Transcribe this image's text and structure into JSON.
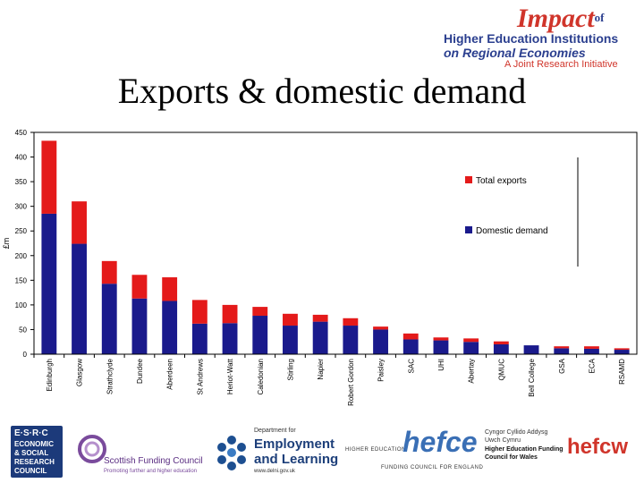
{
  "banner": {
    "line1_big": "Impact",
    "line1_small": "of",
    "line2": "Higher Education Institutions",
    "line3": "on Regional Economies",
    "line4": "A Joint Research Initiative"
  },
  "slide_title": "Exports & domestic demand",
  "chart_data": {
    "type": "bar",
    "stacked": true,
    "title": "",
    "ylabel": "£m",
    "xlabel": "",
    "ylim": [
      0,
      450
    ],
    "yticks": [
      0,
      50,
      100,
      150,
      200,
      250,
      300,
      350,
      400,
      450
    ],
    "legend_position": "top-right",
    "categories": [
      "Edinburgh",
      "Glasgow",
      "Strathclyde",
      "Dundee",
      "Aberdeen",
      "St Andrews",
      "Heriot-Watt",
      "Caledonian",
      "Stirling",
      "Napier",
      "Robert Gordon",
      "Paisley",
      "SAC",
      "UHI",
      "Abertay",
      "QMUC",
      "Bell College",
      "GSA",
      "ECA",
      "RSAMD"
    ],
    "series": [
      {
        "name": "Domestic demand",
        "color": "#1a1a8c",
        "values": [
          285,
          224,
          143,
          113,
          108,
          62,
          63,
          78,
          58,
          66,
          58,
          50,
          30,
          28,
          25,
          20,
          18,
          12,
          11,
          9
        ]
      },
      {
        "name": "Total exports",
        "color": "#e41a1a",
        "values": [
          148,
          86,
          46,
          48,
          48,
          48,
          37,
          18,
          24,
          14,
          15,
          6,
          12,
          6,
          7,
          6,
          0,
          4,
          5,
          3
        ]
      }
    ],
    "legend": [
      "Total exports",
      "Domestic demand"
    ]
  },
  "logos": {
    "esrc": [
      "E·S·R·C",
      "ECONOMIC",
      "& SOCIAL",
      "RESEARCH",
      "COUNCIL"
    ],
    "sfc": {
      "name": "Scottish Funding Council",
      "tagline": "Promoting further and higher education"
    },
    "del": {
      "dept": "Department for",
      "line1": "Employment",
      "line2": "and Learning",
      "url": "www.delni.gov.uk"
    },
    "hefce": {
      "name": "hefce",
      "left": "HIGHER EDUCATION",
      "bottom": "FUNDING COUNCIL FOR ENGLAND"
    },
    "hefcw": {
      "welsh1": "Cyngor Cyllido Addysg",
      "welsh2": "Uwch Cymru",
      "eng1": "Higher Education Funding",
      "eng2": "Council for Wales",
      "name": "hefcw"
    }
  }
}
